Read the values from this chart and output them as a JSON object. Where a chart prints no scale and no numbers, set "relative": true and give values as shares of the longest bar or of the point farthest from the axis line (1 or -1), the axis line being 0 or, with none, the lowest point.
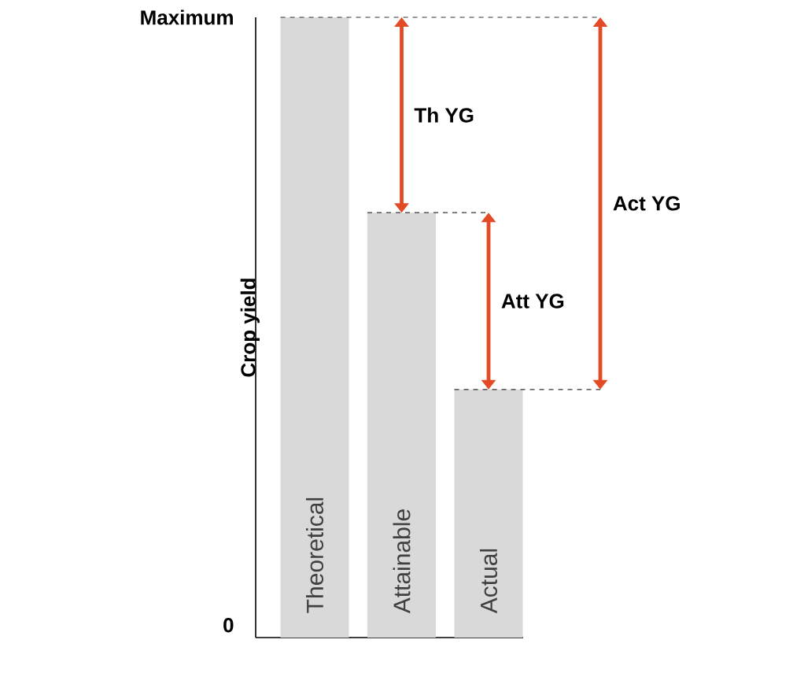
{
  "chart_data": {
    "type": "bar",
    "ylabel": "Crop yield",
    "categories": [
      "Theoretical",
      "Attainable",
      "Actual"
    ],
    "values": [
      1,
      0.685,
      0.4
    ],
    "color": "#d9d9d9",
    "relative": true,
    "annotations": [
      "Maximum",
      "0",
      "Th YG",
      "Att YG",
      "Act YG"
    ],
    "ref_lines": [
      {
        "axis": "y",
        "value": 1,
        "color": "#333333",
        "line_style": "dashed"
      },
      {
        "axis": "y",
        "value": 0.685,
        "color": "#333333",
        "line_style": "dashed"
      },
      {
        "axis": "y",
        "value": 0.4,
        "color": "#333333",
        "line_style": "dashed"
      }
    ]
  }
}
